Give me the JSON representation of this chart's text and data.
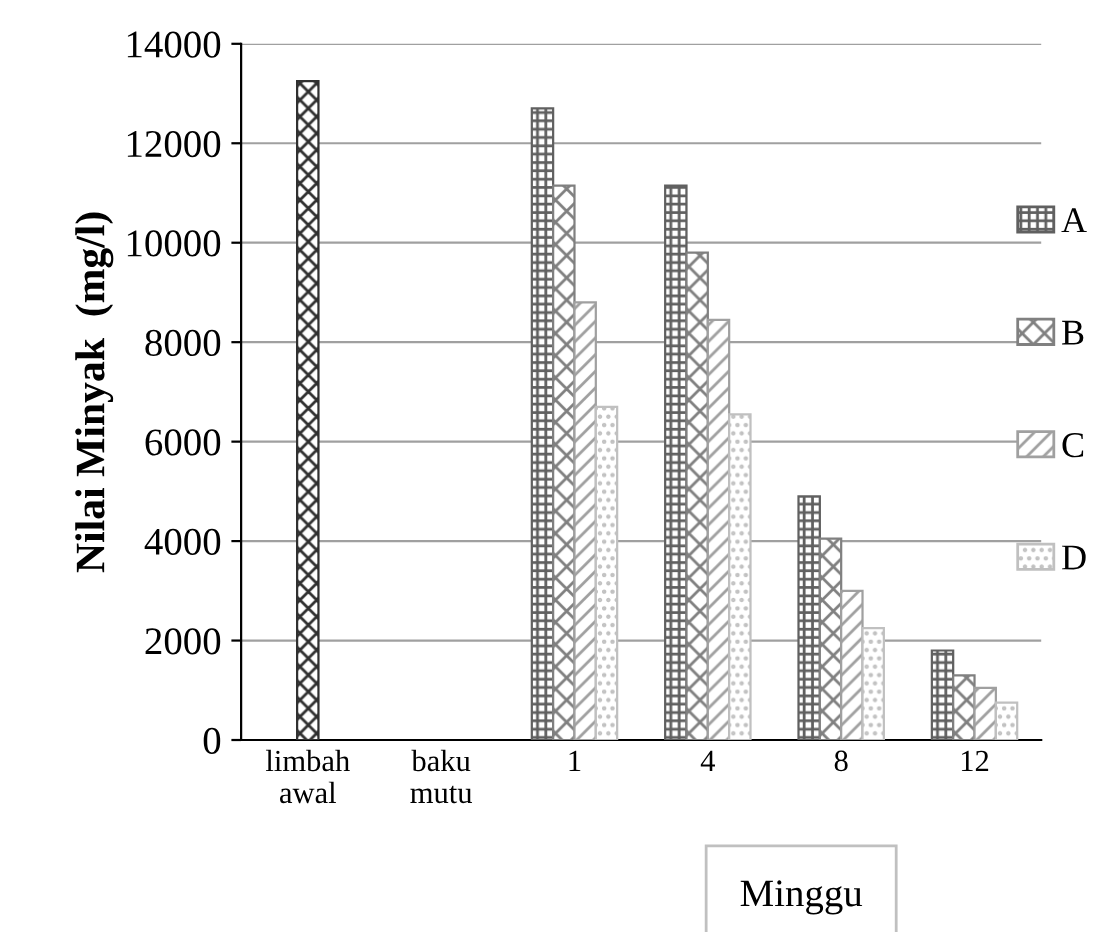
{
  "chart_data": {
    "type": "bar",
    "xlabel": "Minggu",
    "ylabel": "Nilai Minyak  (mg/l)",
    "categories": [
      "limbah\nawal",
      "baku\nmutu",
      "1",
      "4",
      "8",
      "12"
    ],
    "series": [
      {
        "color": "#303030",
        "values": [
          13250,
          null,
          null,
          null,
          null,
          null
        ]
      },
      {
        "name": "A",
        "color": "#606060",
        "values": [
          null,
          null,
          12700,
          11150,
          4900,
          1800
        ]
      },
      {
        "name": "B",
        "color": "#808080",
        "values": [
          null,
          null,
          11150,
          9800,
          4050,
          1300
        ]
      },
      {
        "name": "C",
        "color": "#a0a0a0",
        "values": [
          null,
          null,
          8800,
          8450,
          3000,
          1050
        ]
      },
      {
        "name": "D",
        "color": "#c0c0c0",
        "values": [
          null,
          null,
          6700,
          6550,
          2250,
          750
        ]
      }
    ],
    "ylim": [
      0,
      14000
    ],
    "yticks": [
      0,
      2000,
      4000,
      6000,
      8000,
      10000,
      12000,
      14000
    ],
    "grid": "y",
    "legend": "right"
  }
}
